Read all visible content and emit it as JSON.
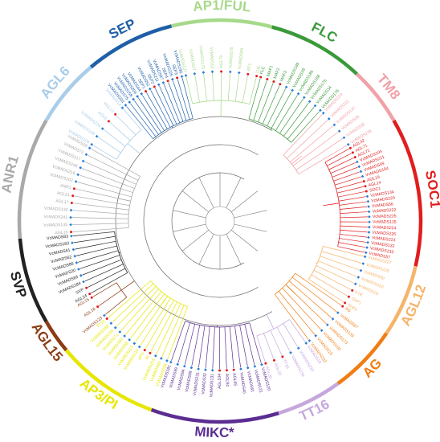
{
  "groups": [
    {
      "id": "ap1-ful",
      "label": "AP1/FUL",
      "color": "#a7d98a"
    },
    {
      "id": "flc",
      "label": "FLC",
      "color": "#3a9a3a"
    },
    {
      "id": "tm8",
      "label": "TM8",
      "color": "#f1a1a8"
    },
    {
      "id": "soc1",
      "label": "SOC1",
      "color": "#e11d1d"
    },
    {
      "id": "agl12",
      "label": "AGL12",
      "color": "#f5b46b"
    },
    {
      "id": "ag",
      "label": "AG",
      "color": "#f07d14"
    },
    {
      "id": "tt16",
      "label": "TT16",
      "color": "#c6a7dd"
    },
    {
      "id": "mikc-star",
      "label": "MIKC*",
      "color": "#5b2d91"
    },
    {
      "id": "ap3-pi",
      "label": "AP3/PI",
      "color": "#e6e600"
    },
    {
      "id": "agl15",
      "label": "AGL15",
      "color": "#8b3d14"
    },
    {
      "id": "svp",
      "label": "SVP",
      "color": "#222222"
    },
    {
      "id": "anr1",
      "label": "ANR1",
      "color": "#a9a9a9"
    },
    {
      "id": "agl6",
      "label": "AGL6",
      "color": "#a9cde9"
    },
    {
      "id": "sep",
      "label": "SEP",
      "color": "#1f5fa8"
    }
  ],
  "leaves": {
    "sep": [
      "VcMADS201",
      "VcMADS75",
      "VcMADS158",
      "VcMADS204",
      "VcMADS44",
      "SEP1",
      "VcMADS52",
      "SEP2",
      "VcMADS211",
      "VcMADS97",
      "SEP4",
      "VcMADS225",
      "SEP3",
      "VcMADS196"
    ],
    "ap1-ful": [
      "VcMADS137",
      "VcMADS27",
      "VcMADS170",
      "VcMADS13",
      "AGL79",
      "VcMADS78",
      "VcMADS89",
      "AP1",
      "CAL"
    ],
    "flc": [
      "FLC",
      "MAF1",
      "MAF2",
      "MAF3",
      "VcMADS189",
      "VcMADS38",
      "VcMADS186",
      "VcMADS188",
      "VcMADS175",
      "VcMADS34",
      "VcMADS176"
    ],
    "tm8": [
      "VcMADS119",
      "VcMADS111",
      "VcMADS147",
      "VcMADS36",
      "VcMADS35",
      "VcMADS236"
    ],
    "soc1": [
      "AGL42",
      "AGL71",
      "AGL72",
      "VcMADS104",
      "VcMADS221",
      "VcMADS69",
      "VcMADS154",
      "AGL19",
      "AGL14",
      "SOC1",
      "VcMADS134",
      "VcMADS220",
      "VcMADS56",
      "VcMADS222",
      "VcMADS225",
      "VcMADS135",
      "VcMADS224",
      "VcMADS226",
      "VcMADS223",
      "VcMADS132",
      "VcMADS133",
      "VcMADS57"
    ],
    "agl12": [
      "VcMADS227",
      "VcMADS228",
      "VcMADS30",
      "VcMADS162",
      "VcMADS29",
      "STK",
      "SHP1",
      "SHP2"
    ],
    "ag": [
      "AG",
      "VcMADS67",
      "VcMADS139",
      "VcMADS173",
      "VcMADS102",
      "VcMADS19",
      "VcMADS232"
    ],
    "tt16": [
      "VcMADS18",
      "VcMADS233",
      "VcMADS234",
      "TT16",
      "AGL32",
      "AGL30"
    ],
    "mikc-star": [
      "VcMADS120",
      "VcMADS121",
      "VcMADS81",
      "VcMADS40",
      "AGL65",
      "AGL94",
      "AGL104",
      "VcMADS131",
      "VcMADS32",
      "VcMADS231",
      "VcMADS89",
      "VcMADS94",
      "VcMADS99",
      "VcMADS181"
    ],
    "ap3-pi": [
      "VcMADS208",
      "VcMADS60",
      "VcMADS215",
      "PI",
      "AP3",
      "VcMADS124",
      "VcMADS110",
      "VcMADS58",
      "VcMADS93",
      "VcMADS71",
      "VcMADS150",
      "VcMADS168",
      "TT16b"
    ],
    "agl15": [
      "VcMADS123",
      "AGL18",
      "AGL15"
    ],
    "svp": [
      "AGL24",
      "SVP",
      "VcMADS184",
      "VcMADS83",
      "VcMADS20",
      "VcMADS86",
      "VcMADS62",
      "VcMADS61",
      "VcMADS183",
      "VcMADS83b"
    ],
    "anr1": [
      "AGL16",
      "VcMADS135b",
      "VcMADS241",
      "VcMADS134b",
      "AGL17",
      "AGL21",
      "ANR1",
      "VcMADS202",
      "VcMADS216",
      "VcMADS245",
      "VcMADS217",
      "VcMADS72",
      "VcMADS28"
    ],
    "agl6": [
      "VcMADS109",
      "VcMADS108",
      "VcMADS226b",
      "AGL6",
      "AGL13",
      "VcMADS14"
    ]
  }
}
